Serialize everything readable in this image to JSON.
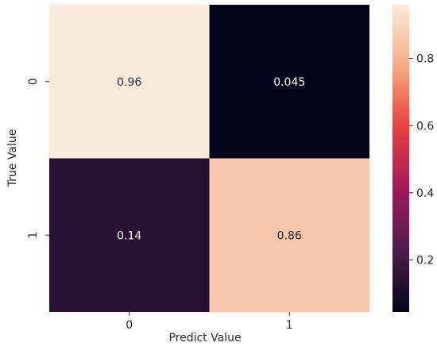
{
  "chart_data": {
    "type": "heatmap",
    "title": "",
    "xlabel": "Predict Value",
    "ylabel": "True Value",
    "x_categories": [
      "0",
      "1"
    ],
    "y_categories": [
      "0",
      "1"
    ],
    "values": [
      [
        0.96,
        0.045
      ],
      [
        0.14,
        0.86
      ]
    ],
    "cell_labels": [
      [
        "0.96",
        "0.045"
      ],
      [
        "0.14",
        "0.86"
      ]
    ],
    "colormap": "rocket",
    "colorbar": {
      "range": [
        0.045,
        0.96
      ],
      "ticks": [
        0.2,
        0.4,
        0.6,
        0.8
      ],
      "tick_labels": [
        "0.2",
        "0.4",
        "0.6",
        "0.8"
      ]
    }
  }
}
